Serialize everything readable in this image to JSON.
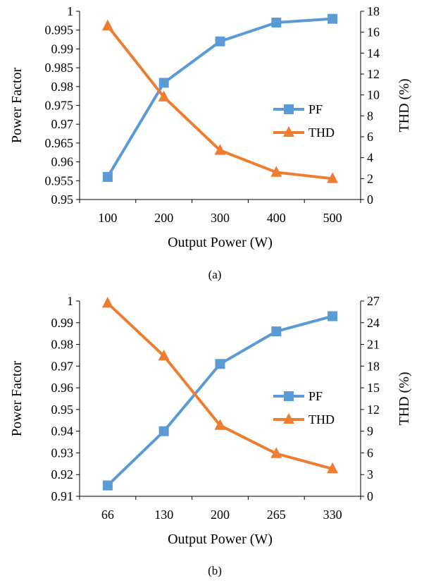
{
  "colors": {
    "pf": "#5B9BD5",
    "thd": "#ED7D31",
    "axis": "#000000"
  },
  "chart_data": [
    {
      "type": "line",
      "caption": "(a)",
      "categories": [
        "100",
        "200",
        "300",
        "400",
        "500"
      ],
      "xlabel": "Output Power (W)",
      "ylabel": "Power Factor",
      "y2label": "THD (%)",
      "ylim": [
        0.95,
        1
      ],
      "y2lim": [
        0,
        18
      ],
      "yticks": [
        "0.95",
        "0.955",
        "0.96",
        "0.965",
        "0.97",
        "0.975",
        "0.98",
        "0.985",
        "0.99",
        "0.995",
        "1"
      ],
      "y2ticks": [
        "0",
        "2",
        "4",
        "6",
        "8",
        "10",
        "12",
        "14",
        "16",
        "18"
      ],
      "legend": "center-right",
      "series": [
        {
          "name": "PF",
          "axis": "left",
          "marker": "square",
          "values": [
            0.956,
            0.981,
            0.992,
            0.997,
            0.998
          ]
        },
        {
          "name": "THD",
          "axis": "right",
          "marker": "triangle",
          "values": [
            16.6,
            9.8,
            4.7,
            2.6,
            2.0
          ]
        }
      ]
    },
    {
      "type": "line",
      "caption": "(b)",
      "categories": [
        "66",
        "130",
        "200",
        "265",
        "330"
      ],
      "xlabel": "Output Power (W)",
      "ylabel": "Power Factor",
      "y2label": "THD (%)",
      "ylim": [
        0.91,
        1
      ],
      "y2lim": [
        0,
        27
      ],
      "yticks": [
        "0.91",
        "0.92",
        "0.93",
        "0.94",
        "0.95",
        "0.96",
        "0.97",
        "0.98",
        "0.99",
        "1"
      ],
      "y2ticks": [
        "0",
        "3",
        "6",
        "9",
        "12",
        "15",
        "18",
        "21",
        "24",
        "27"
      ],
      "legend": "center-right",
      "series": [
        {
          "name": "PF",
          "axis": "left",
          "marker": "square",
          "values": [
            0.915,
            0.94,
            0.971,
            0.986,
            0.993
          ]
        },
        {
          "name": "THD",
          "axis": "right",
          "marker": "triangle",
          "values": [
            26.7,
            19.4,
            9.8,
            5.9,
            3.8
          ]
        }
      ]
    }
  ]
}
